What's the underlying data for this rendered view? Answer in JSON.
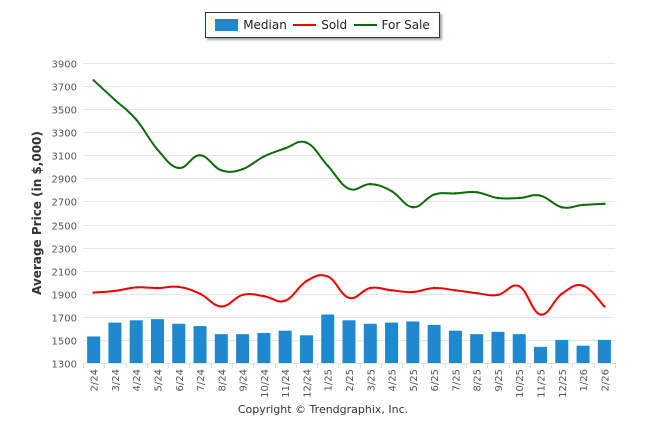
{
  "chart_data": {
    "type": "bar",
    "title": "",
    "xlabel": "",
    "ylabel": "Average Price (in $,000)",
    "ylim": [
      1300,
      3900
    ],
    "yticks": [
      1300,
      1500,
      1700,
      1900,
      2100,
      2300,
      2500,
      2700,
      2900,
      3100,
      3300,
      3500,
      3700,
      3900
    ],
    "grid": true,
    "legend_position": "top-center",
    "categories": [
      "2/24",
      "3/24",
      "4/24",
      "5/24",
      "6/24",
      "7/24",
      "8/24",
      "9/24",
      "10/24",
      "11/24",
      "12/24",
      "1/25",
      "2/25",
      "3/25",
      "4/25",
      "5/25",
      "6/25",
      "7/25",
      "8/25",
      "9/25",
      "10/25",
      "11/25",
      "12/25",
      "1/26",
      "2/26"
    ],
    "series": [
      {
        "name": "Median",
        "type": "bar",
        "color": "#1e88d0",
        "values": [
          1530,
          1650,
          1670,
          1680,
          1640,
          1620,
          1550,
          1550,
          1560,
          1580,
          1540,
          1720,
          1670,
          1640,
          1650,
          1660,
          1630,
          1580,
          1550,
          1570,
          1550,
          1440,
          1500,
          1450,
          1500
        ]
      },
      {
        "name": "Sold",
        "type": "line",
        "color": "#ee0000",
        "values": [
          1910,
          1925,
          1955,
          1950,
          1960,
          1900,
          1790,
          1890,
          1880,
          1840,
          2010,
          2050,
          1865,
          1950,
          1930,
          1915,
          1950,
          1930,
          1905,
          1890,
          1965,
          1720,
          1900,
          1970,
          1790
        ]
      },
      {
        "name": "For Sale",
        "type": "line",
        "color": "#0a6b0a",
        "values": [
          3750,
          3580,
          3410,
          3150,
          2990,
          3100,
          2970,
          2980,
          3090,
          3160,
          3210,
          3010,
          2810,
          2850,
          2790,
          2650,
          2760,
          2770,
          2780,
          2730,
          2730,
          2750,
          2650,
          2670,
          2680
        ]
      }
    ]
  },
  "legend": {
    "items": [
      {
        "label": "Median",
        "color": "#1e88d0"
      },
      {
        "label": "Sold",
        "color": "#ee0000"
      },
      {
        "label": "For Sale",
        "color": "#0a6b0a"
      }
    ]
  },
  "footer": {
    "copyright": "Copyright © Trendgraphix, Inc."
  }
}
